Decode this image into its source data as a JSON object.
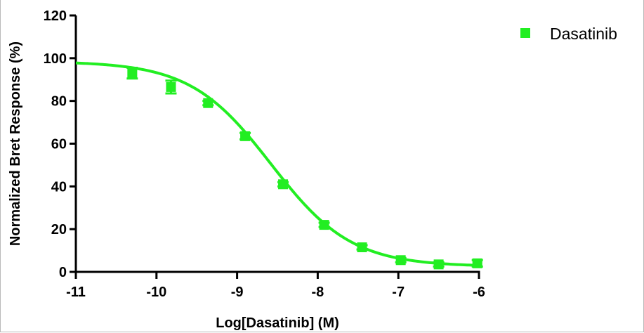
{
  "chart_data": {
    "type": "scatter",
    "xlabel": "Log[Dasatinib] (M)",
    "ylabel": "Normalized Bret Response (%)",
    "xlim": [
      -11,
      -6
    ],
    "ylim": [
      0,
      120
    ],
    "xticks": [
      -11,
      -10,
      -9,
      -8,
      -7,
      -6
    ],
    "xtick_labels": [
      "-11",
      "-10",
      "-9",
      "-8",
      "-7",
      "-6"
    ],
    "yticks": [
      0,
      20,
      40,
      60,
      80,
      100,
      120
    ],
    "ytick_labels": [
      "0",
      "20",
      "40",
      "60",
      "80",
      "100",
      "120"
    ],
    "grid": false,
    "legend_position": "top-right",
    "colors": {
      "series": "#22ee22",
      "axis": "#000000"
    },
    "series": [
      {
        "name": "Dasatinib",
        "marker": "square",
        "x": [
          -10.3,
          -9.82,
          -9.36,
          -8.9,
          -8.43,
          -7.92,
          -7.45,
          -6.97,
          -6.5,
          -6.02
        ],
        "y": [
          93,
          86.5,
          79,
          63.5,
          41,
          22,
          11.5,
          5.5,
          3.5,
          4
        ],
        "error": [
          2.5,
          3,
          1,
          1.5,
          1,
          1,
          1,
          1,
          1,
          1.5
        ],
        "fit": {
          "model": "sigmoidal",
          "top": 98.5,
          "bottom": 2.5,
          "logIC50": -8.58,
          "hill": -0.87
        }
      }
    ]
  }
}
